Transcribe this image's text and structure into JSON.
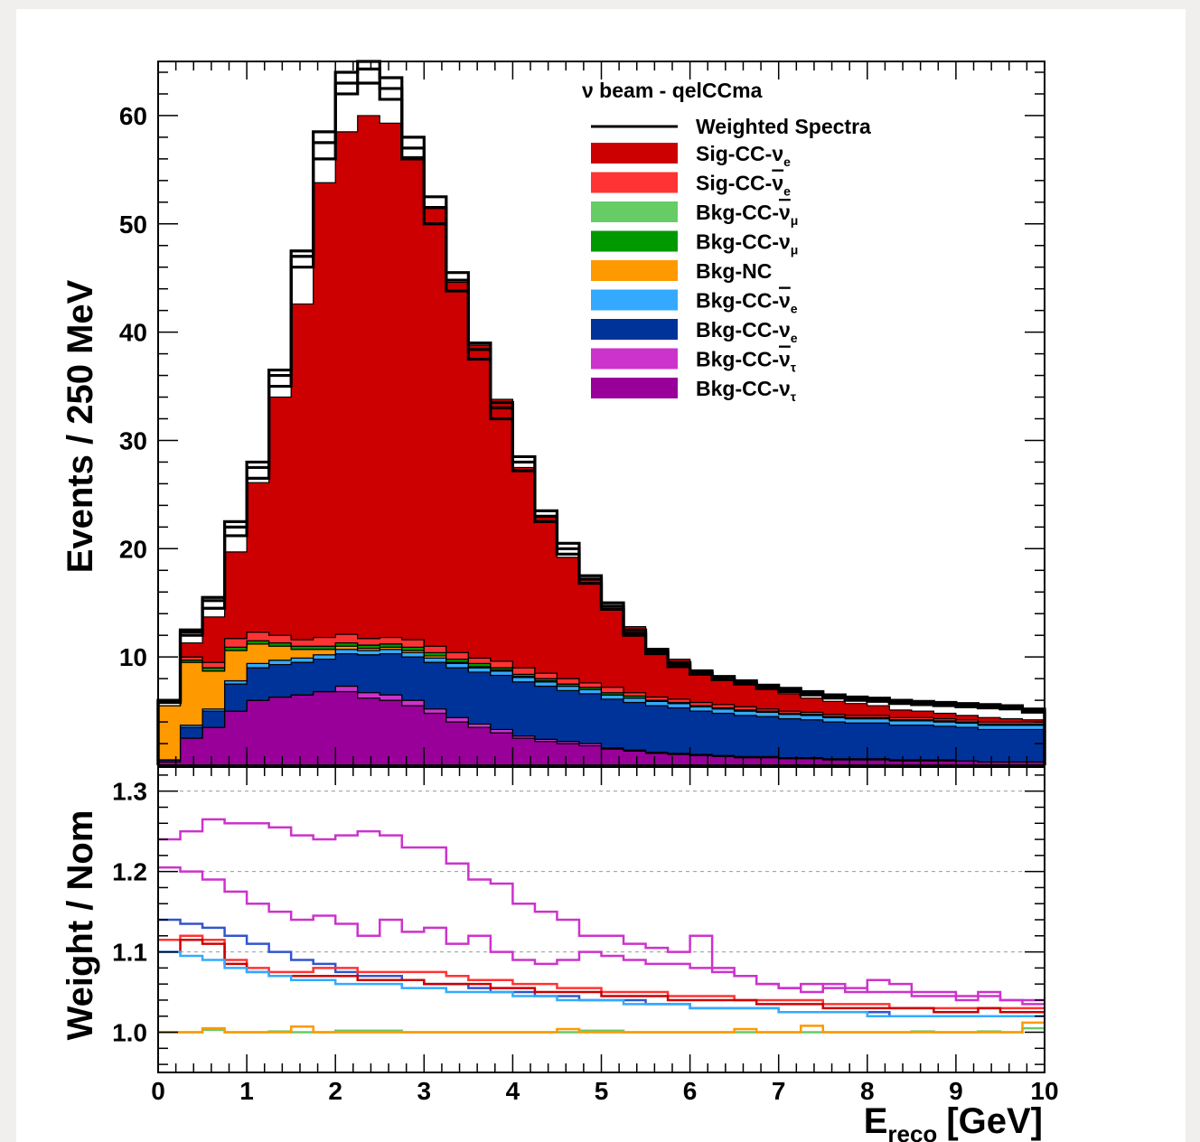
{
  "chart_data": [
    {
      "type": "area",
      "subtype": "stacked-step-histogram",
      "title": "",
      "xlabel": "",
      "ylabel": "Events / 250 MeV",
      "xlim": [
        0,
        10
      ],
      "ylim": [
        0,
        65
      ],
      "bin_width": 0.25,
      "yticks": [
        10,
        20,
        30,
        40,
        50,
        60
      ],
      "legend": {
        "placement": "top-right",
        "header": "ν beam - qelCCma",
        "line_entry": "Weighted Spectra",
        "entries": [
          {
            "base": "Sig-CC-",
            "nu": "ν",
            "bar": false,
            "sub": "e"
          },
          {
            "base": "Sig-CC-",
            "nu": "ν",
            "bar": true,
            "sub": "e"
          },
          {
            "base": "Bkg-CC-",
            "nu": "ν",
            "bar": true,
            "sub": "μ"
          },
          {
            "base": "Bkg-CC-",
            "nu": "ν",
            "bar": false,
            "sub": "μ"
          },
          {
            "base": "Bkg-NC",
            "nu": "",
            "bar": false,
            "sub": ""
          },
          {
            "base": "Bkg-CC-",
            "nu": "ν",
            "bar": true,
            "sub": "e"
          },
          {
            "base": "Bkg-CC-",
            "nu": "ν",
            "bar": false,
            "sub": "e"
          },
          {
            "base": "Bkg-CC-",
            "nu": "ν",
            "bar": true,
            "sub": "τ"
          },
          {
            "base": "Bkg-CC-",
            "nu": "ν",
            "bar": false,
            "sub": "τ"
          }
        ]
      },
      "colors": {
        "sig_cc_nue": "#cc0000",
        "sig_cc_nuebar": "#ff3333",
        "bkg_cc_numubar": "#66cc66",
        "bkg_cc_numu": "#009900",
        "bkg_nc": "#ff9900",
        "bkg_cc_nuebar": "#33aaff",
        "bkg_cc_nue": "#003399",
        "bkg_cc_nutaubar": "#cc33cc",
        "bkg_cc_nutau": "#990099"
      },
      "series": [
        {
          "key": "bkg_cc_nutau",
          "values": [
            0.3,
            2.5,
            3.5,
            5,
            6,
            6.3,
            6.5,
            6.8,
            6.8,
            6.2,
            6,
            5.5,
            4.8,
            4,
            3.5,
            3,
            2.5,
            2.2,
            2,
            1.8,
            1.5,
            1.3,
            1.1,
            1,
            0.9,
            0.8,
            0.7,
            0.7,
            0.6,
            0.6,
            0.5,
            0.5,
            0.5,
            0.4,
            0.4,
            0.4,
            0.4,
            0.3,
            0.3,
            0.3
          ]
        },
        {
          "key": "bkg_cc_nutaubar",
          "values": [
            0,
            0,
            0,
            0,
            0,
            0,
            0,
            0,
            0.5,
            0.5,
            0.5,
            0.5,
            0.4,
            0.4,
            0.3,
            0.3,
            0.2,
            0.2,
            0.2,
            0.2,
            0.1,
            0.1,
            0.1,
            0.1,
            0.1,
            0.1,
            0.1,
            0.1,
            0.1,
            0.1,
            0.1,
            0.1,
            0.1,
            0.1,
            0.1,
            0.1,
            0,
            0,
            0,
            0
          ]
        },
        {
          "key": "bkg_cc_nue",
          "values": [
            0.2,
            1,
            1.5,
            2.5,
            3,
            3,
            3,
            3,
            3,
            3.5,
            3.8,
            4,
            4.3,
            4.6,
            4.8,
            5,
            5,
            4.9,
            4.7,
            4.6,
            4.5,
            4.4,
            4.3,
            4.2,
            4,
            3.9,
            3.8,
            3.7,
            3.6,
            3.5,
            3.4,
            3.3,
            3.3,
            3.2,
            3.2,
            3.1,
            3.1,
            3,
            3,
            3
          ]
        },
        {
          "key": "bkg_cc_nuebar",
          "values": [
            0,
            0.2,
            0.2,
            0.3,
            0.4,
            0.4,
            0.4,
            0.4,
            0.4,
            0.4,
            0.4,
            0.4,
            0.4,
            0.4,
            0.4,
            0.4,
            0.4,
            0.4,
            0.4,
            0.4,
            0.4,
            0.4,
            0.4,
            0.4,
            0.4,
            0.4,
            0.4,
            0.4,
            0.4,
            0.4,
            0.4,
            0.4,
            0.4,
            0.4,
            0.4,
            0.4,
            0.4,
            0.4,
            0.4,
            0.4
          ]
        },
        {
          "key": "bkg_nc",
          "values": [
            5,
            5.8,
            3.5,
            2.8,
            1.8,
            1.3,
            0.8,
            0.5,
            0.3,
            0.2,
            0.2,
            0.2,
            0.2,
            0.1,
            0.1,
            0.1,
            0.1,
            0.1,
            0,
            0,
            0,
            0,
            0,
            0,
            0,
            0,
            0,
            0,
            0,
            0,
            0,
            0,
            0,
            0,
            0,
            0,
            0,
            0,
            0,
            0
          ]
        },
        {
          "key": "bkg_cc_numu",
          "values": [
            0,
            0.2,
            0.3,
            0.3,
            0.3,
            0.3,
            0.3,
            0.3,
            0.3,
            0.3,
            0.3,
            0.3,
            0.3,
            0.3,
            0.3,
            0.2,
            0.2,
            0.2,
            0.2,
            0.2,
            0.2,
            0.2,
            0.1,
            0.1,
            0.1,
            0.1,
            0.1,
            0.1,
            0.1,
            0.1,
            0.1,
            0.1,
            0.1,
            0.1,
            0.1,
            0.1,
            0.1,
            0.1,
            0.1,
            0.1
          ]
        },
        {
          "key": "bkg_cc_numubar",
          "values": [
            0,
            0,
            0,
            0,
            0,
            0,
            0,
            0,
            0,
            0,
            0,
            0,
            0,
            0,
            0,
            0,
            0,
            0,
            0,
            0,
            0,
            0,
            0,
            0,
            0,
            0,
            0,
            0,
            0,
            0,
            0,
            0,
            0,
            0,
            0,
            0,
            0,
            0,
            0,
            0
          ]
        },
        {
          "key": "sig_cc_nuebar",
          "values": [
            0,
            0.3,
            0.5,
            0.8,
            0.8,
            0.7,
            0.6,
            0.8,
            0.8,
            0.6,
            0.6,
            0.7,
            0.6,
            0.6,
            0.5,
            0.6,
            0.6,
            0.5,
            0.5,
            0.4,
            0.5,
            0.3,
            0.3,
            0.3,
            0.3,
            0.3,
            0.3,
            0.2,
            0.2,
            0.2,
            0.2,
            0.2,
            0.2,
            0.2,
            0.2,
            0.2,
            0.2,
            0.2,
            0.2,
            0.2
          ]
        },
        {
          "key": "sig_cc_nue",
          "values": [
            0,
            1.3,
            4.2,
            8,
            13.8,
            22,
            31,
            42,
            46.4,
            48.3,
            47.5,
            44.6,
            40.6,
            34.2,
            28.9,
            24.2,
            18.5,
            14.4,
            11.2,
            9.5,
            7.5,
            6.1,
            4.5,
            3.7,
            3,
            2.5,
            2.1,
            1.8,
            1.6,
            1.3,
            1.2,
            1.1,
            0.9,
            0.7,
            0.6,
            0.5,
            0.4,
            0.4,
            0.3,
            0.2
          ]
        }
      ],
      "weighted_spectra": [
        [
          6,
          12.5,
          15.5,
          22.5,
          28,
          36.5,
          47.5,
          58.5,
          64,
          65,
          63.5,
          58,
          52.5,
          45.5,
          39,
          33.5,
          28.5,
          23.5,
          20.5,
          17.5,
          15,
          12.5,
          10.7,
          9.5,
          8.7,
          8.2,
          7.8,
          7.4,
          7.1,
          6.8,
          6.5,
          6.3,
          6.2,
          6,
          5.9,
          5.8,
          5.7,
          5.6,
          5.5,
          5.2
        ],
        [
          6,
          12.3,
          15.2,
          22,
          27.5,
          36,
          47,
          57.5,
          63,
          64.3,
          62.5,
          57,
          51.5,
          44.8,
          38.4,
          33,
          28,
          23,
          20,
          17.2,
          14.7,
          12.2,
          10.5,
          9.3,
          8.5,
          8,
          7.6,
          7.2,
          6.9,
          6.6,
          6.3,
          6.1,
          6,
          5.8,
          5.7,
          5.6,
          5.5,
          5.4,
          5.3,
          5
        ],
        [
          5.8,
          12,
          14.5,
          21.2,
          26.5,
          35,
          46,
          56,
          62,
          63,
          61.5,
          56,
          50,
          43.8,
          37.5,
          32,
          27.2,
          22.5,
          19.5,
          16.8,
          14.4,
          12,
          10.3,
          9.1,
          8.4,
          7.9,
          7.5,
          7.1,
          6.8,
          6.5,
          6.2,
          6,
          5.9,
          5.7,
          5.6,
          5.5,
          5.4,
          5.3,
          5.2,
          4.9
        ]
      ],
      "x": [
        0,
        0.25,
        0.5,
        0.75,
        1,
        1.25,
        1.5,
        1.75,
        2,
        2.25,
        2.5,
        2.75,
        3,
        3.25,
        3.5,
        3.75,
        4,
        4.25,
        4.5,
        4.75,
        5,
        5.25,
        5.5,
        5.75,
        6,
        6.25,
        6.5,
        6.75,
        7,
        7.25,
        7.5,
        7.75,
        8,
        8.25,
        8.5,
        8.75,
        9,
        9.25,
        9.5,
        9.75
      ]
    },
    {
      "type": "line",
      "subtype": "step-ratio",
      "title": "",
      "xlabel": "E_reco [GeV]",
      "xlabel_main": "E",
      "xlabel_sub": "reco",
      "xlabel_unit": "[GeV]",
      "ylabel": "Weight / Nom",
      "xlim": [
        0,
        10
      ],
      "ylim": [
        0.95,
        1.33
      ],
      "xticks": [
        0,
        1,
        2,
        3,
        4,
        5,
        6,
        7,
        8,
        9,
        10
      ],
      "yticks": [
        "1.0",
        "1.1",
        "1.2",
        "1.3"
      ],
      "ytick_values": [
        1.0,
        1.1,
        1.2,
        1.3
      ],
      "grid": "dashed horizontal at 1.1, 1.2, 1.3",
      "series": [
        {
          "color": "#cc33cc",
          "values": [
            1.24,
            1.25,
            1.265,
            1.26,
            1.26,
            1.255,
            1.245,
            1.24,
            1.245,
            1.25,
            1.245,
            1.23,
            1.23,
            1.21,
            1.19,
            1.185,
            1.16,
            1.15,
            1.14,
            1.12,
            1.12,
            1.11,
            1.105,
            1.1,
            1.12,
            1.08,
            1.07,
            1.06,
            1.055,
            1.05,
            1.06,
            1.055,
            1.05,
            1.05,
            1.045,
            1.045,
            1.04,
            1.045,
            1.04,
            1.04
          ]
        },
        {
          "color": "#cc33cc",
          "values": [
            1.205,
            1.2,
            1.19,
            1.175,
            1.16,
            1.15,
            1.14,
            1.145,
            1.135,
            1.12,
            1.14,
            1.125,
            1.13,
            1.11,
            1.12,
            1.1,
            1.09,
            1.085,
            1.09,
            1.1,
            1.095,
            1.09,
            1.085,
            1.085,
            1.08,
            1.075,
            1.07,
            1.06,
            1.055,
            1.06,
            1.055,
            1.05,
            1.065,
            1.06,
            1.05,
            1.05,
            1.045,
            1.05,
            1.04,
            1.035
          ]
        },
        {
          "color": "#3355cc",
          "values": [
            1.14,
            1.135,
            1.13,
            1.12,
            1.11,
            1.1,
            1.09,
            1.085,
            1.075,
            1.07,
            1.07,
            1.065,
            1.06,
            1.06,
            1.055,
            1.05,
            1.05,
            1.045,
            1.045,
            1.04,
            1.04,
            1.04,
            1.035,
            1.035,
            1.03,
            1.03,
            1.03,
            1.03,
            1.025,
            1.025,
            1.025,
            1.025,
            1.025,
            1.02,
            1.02,
            1.02,
            1.02,
            1.02,
            1.02,
            1.02
          ]
        },
        {
          "color": "#ff3333",
          "values": [
            1.115,
            1.12,
            1.115,
            1.09,
            1.08,
            1.075,
            1.075,
            1.08,
            1.08,
            1.075,
            1.075,
            1.075,
            1.075,
            1.07,
            1.065,
            1.065,
            1.06,
            1.06,
            1.055,
            1.055,
            1.05,
            1.05,
            1.05,
            1.045,
            1.045,
            1.045,
            1.04,
            1.04,
            1.04,
            1.04,
            1.035,
            1.035,
            1.035,
            1.03,
            1.03,
            1.03,
            1.03,
            1.03,
            1.03,
            1.03
          ]
        },
        {
          "color": "#cc0000",
          "values": [
            1.1,
            1.115,
            1.11,
            1.085,
            1.075,
            1.07,
            1.07,
            1.07,
            1.07,
            1.065,
            1.065,
            1.065,
            1.06,
            1.06,
            1.06,
            1.055,
            1.055,
            1.05,
            1.05,
            1.05,
            1.045,
            1.045,
            1.045,
            1.04,
            1.04,
            1.04,
            1.04,
            1.035,
            1.035,
            1.035,
            1.03,
            1.03,
            1.03,
            1.03,
            1.03,
            1.025,
            1.025,
            1.03,
            1.025,
            1.025
          ]
        },
        {
          "color": "#33aaff",
          "values": [
            1.1,
            1.095,
            1.09,
            1.08,
            1.075,
            1.07,
            1.065,
            1.065,
            1.06,
            1.06,
            1.06,
            1.055,
            1.055,
            1.05,
            1.05,
            1.05,
            1.045,
            1.045,
            1.04,
            1.04,
            1.04,
            1.035,
            1.035,
            1.035,
            1.03,
            1.03,
            1.03,
            1.03,
            1.025,
            1.025,
            1.025,
            1.025,
            1.02,
            1.02,
            1.02,
            1.02,
            1.02,
            1.02,
            1.02,
            1.02
          ]
        },
        {
          "color": "#66cc66",
          "values": [
            1,
            1,
            1.003,
            1,
            1,
            1.001,
            1,
            1,
            1.002,
            1.002,
            1.002,
            1,
            1,
            1,
            1,
            1,
            1,
            1,
            1,
            1.002,
            1.002,
            1,
            1,
            1,
            1,
            1,
            1,
            1,
            1,
            1,
            1,
            1,
            1,
            1,
            1.001,
            1,
            1,
            1.001,
            1,
            1.005
          ]
        },
        {
          "color": "#ff9900",
          "values": [
            1,
            1,
            1.005,
            1,
            1,
            1,
            1.007,
            1,
            1,
            1,
            1,
            1,
            1,
            1,
            1,
            1,
            1,
            1,
            1.004,
            1,
            1,
            1,
            1,
            1,
            1,
            1,
            1.004,
            1,
            1,
            1.008,
            1,
            1,
            1,
            1,
            1,
            1,
            1,
            1,
            1,
            1.012
          ]
        }
      ]
    }
  ]
}
